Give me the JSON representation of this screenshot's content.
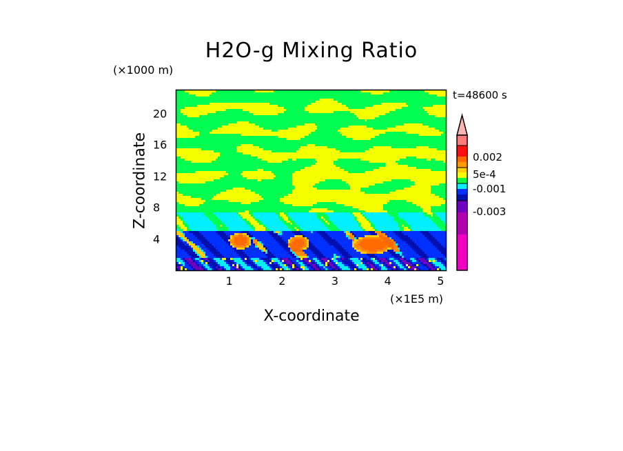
{
  "chart_data": {
    "type": "heatmap",
    "title": "H2O-g Mixing Ratio",
    "xlabel": "X-coordinate",
    "ylabel": "Z-coordinate",
    "x_unit": "(×1E5 m)",
    "y_unit": "(×1000 m)",
    "time_label": "t=48600 s",
    "xlim": [
      0,
      5.1
    ],
    "ylim": [
      0,
      23
    ],
    "x_ticks": [
      "1",
      "2",
      "3",
      "4",
      "5"
    ],
    "x_tick_values": [
      1,
      2,
      3,
      4,
      5
    ],
    "y_ticks": [
      "4",
      "8",
      "12",
      "16",
      "20"
    ],
    "y_tick_values": [
      4,
      8,
      12,
      16,
      20
    ],
    "colorbar": {
      "extend": "max",
      "labels": [
        "0.002",
        "5e-4",
        "-0.001",
        "-0.003"
      ],
      "colors_top_to_bottom": [
        "#ffb3b3",
        "#ff7a7a",
        "#ff1010",
        "#ff6a00",
        "#ff9a00",
        "#ffcf00",
        "#f5ff00",
        "#00ff40",
        "#00f0ff",
        "#0030ff",
        "#0010b0",
        "#7000c0",
        "#b000b0",
        "#f000c0"
      ]
    },
    "field_description_bands": [
      {
        "z_from": 0,
        "z_to": 1.5,
        "dominant": "navy/purple/blue mix"
      },
      {
        "z_from": 1.5,
        "z_to": 5,
        "dominant": "blue with orange plumes"
      },
      {
        "z_from": 5,
        "z_to": 7.5,
        "dominant": "cyan"
      },
      {
        "z_from": 7.5,
        "z_to": 23,
        "dominant": "green/yellow"
      }
    ]
  }
}
